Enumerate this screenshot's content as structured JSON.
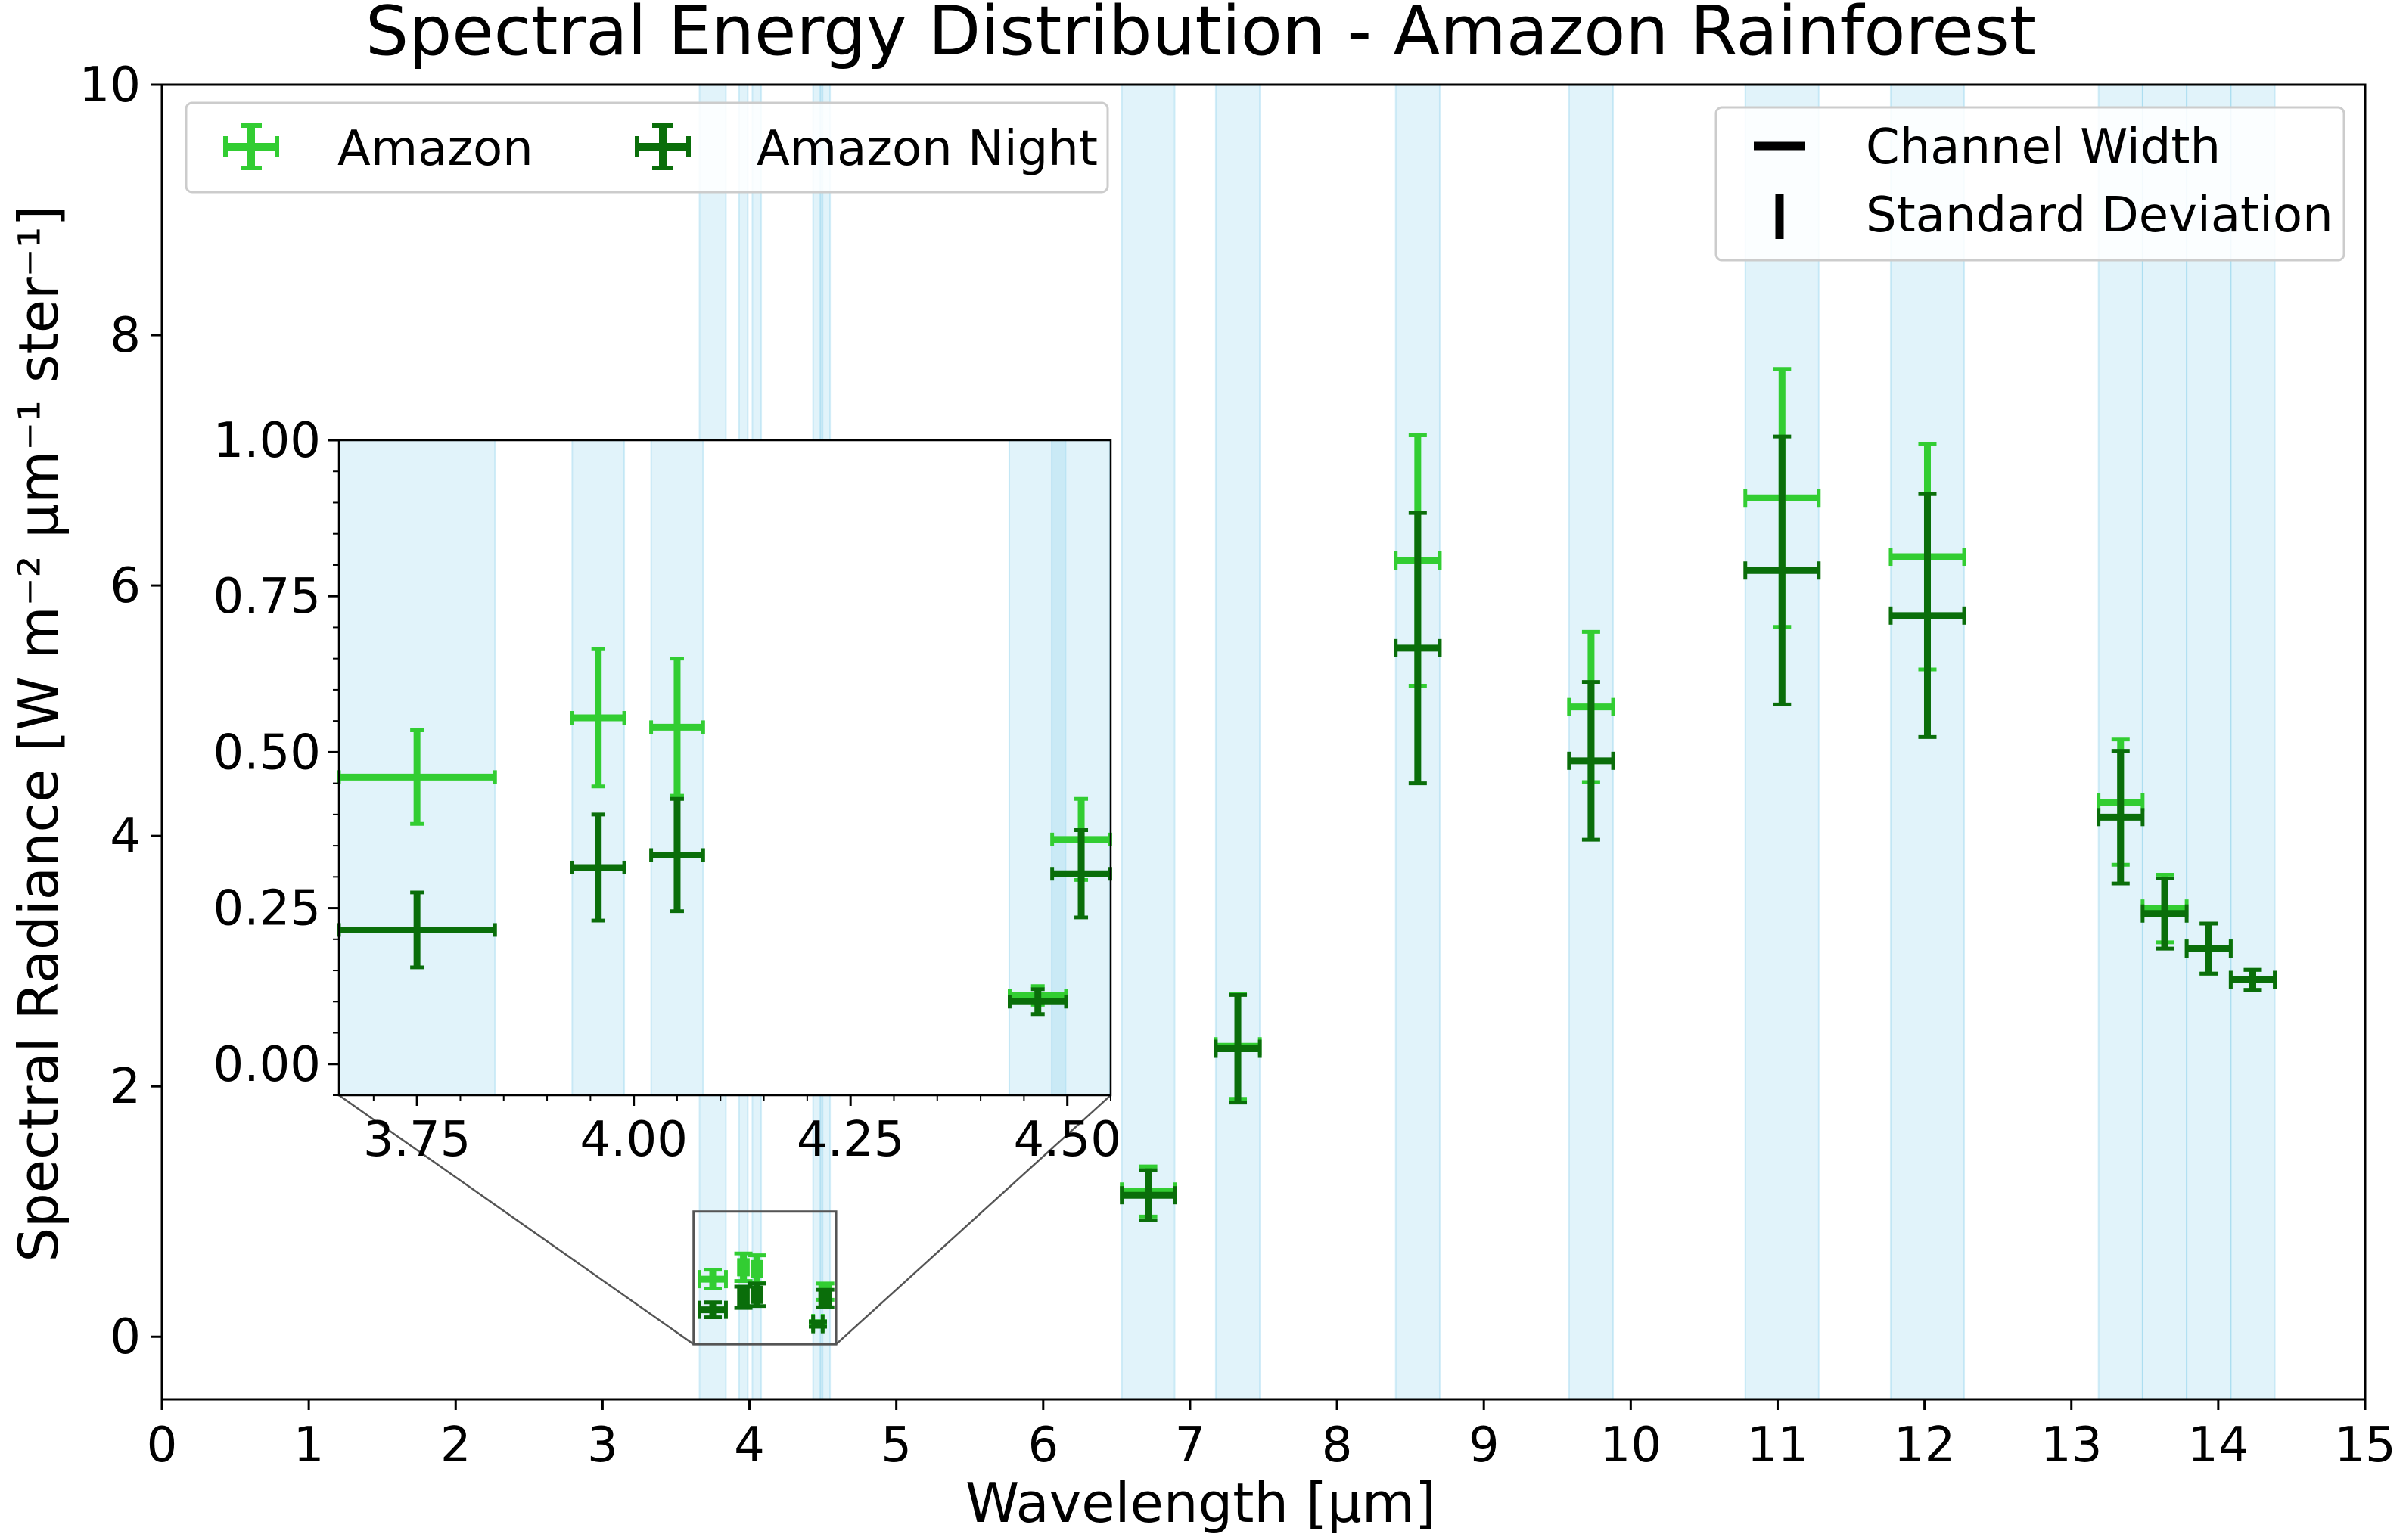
{
  "chart_data": {
    "type": "scatter",
    "title": "Spectral Energy Distribution - Amazon Rainforest",
    "xlabel": "Wavelength [μm]",
    "ylabel": "Spectral Radiance  [W m⁻² μm⁻¹ ster⁻¹]",
    "xlim": [
      0,
      15
    ],
    "ylim": [
      -0.5,
      10
    ],
    "xticks": [
      "0",
      "1",
      "2",
      "3",
      "4",
      "5",
      "6",
      "7",
      "8",
      "9",
      "10",
      "11",
      "12",
      "13",
      "14",
      "15"
    ],
    "yticks": [
      "0",
      "2",
      "4",
      "6",
      "8",
      "10"
    ],
    "bands": [
      [
        3.66,
        3.84
      ],
      [
        3.929,
        3.989
      ],
      [
        4.02,
        4.08
      ],
      [
        4.433,
        4.498
      ],
      [
        4.482,
        4.549
      ],
      [
        6.535,
        6.895
      ],
      [
        7.175,
        7.475
      ],
      [
        8.4,
        8.7
      ],
      [
        9.58,
        9.88
      ],
      [
        10.78,
        11.28
      ],
      [
        11.77,
        12.27
      ],
      [
        13.185,
        13.485
      ],
      [
        13.485,
        13.785
      ],
      [
        13.785,
        14.085
      ],
      [
        14.085,
        14.385
      ]
    ],
    "legend_series_labels": [
      "Amazon",
      "Amazon Night"
    ],
    "legend_key_labels": [
      "Channel Width",
      "Standard Deviation"
    ],
    "series": [
      {
        "name": "Amazon",
        "color": "#32cd32",
        "points": [
          {
            "x": 3.75,
            "xw": 0.09,
            "y": 0.46,
            "yerr": 0.075
          },
          {
            "x": 3.959,
            "xw": 0.03,
            "y": 0.555,
            "yerr": 0.11
          },
          {
            "x": 4.05,
            "xw": 0.03,
            "y": 0.54,
            "yerr": 0.11
          },
          {
            "x": 4.466,
            "xw": 0.0325,
            "y": 0.11,
            "yerr": 0.015
          },
          {
            "x": 4.516,
            "xw": 0.0335,
            "y": 0.36,
            "yerr": 0.065
          },
          {
            "x": 6.715,
            "xw": 0.18,
            "y": 1.16,
            "yerr": 0.2
          },
          {
            "x": 7.325,
            "xw": 0.15,
            "y": 2.32,
            "yerr": 0.42
          },
          {
            "x": 8.55,
            "xw": 0.15,
            "y": 6.2,
            "yerr": 1.0
          },
          {
            "x": 9.73,
            "xw": 0.15,
            "y": 5.03,
            "yerr": 0.6
          },
          {
            "x": 11.03,
            "xw": 0.25,
            "y": 6.7,
            "yerr": 1.03
          },
          {
            "x": 12.02,
            "xw": 0.25,
            "y": 6.23,
            "yerr": 0.9
          },
          {
            "x": 13.335,
            "xw": 0.15,
            "y": 4.27,
            "yerr": 0.5
          },
          {
            "x": 13.635,
            "xw": 0.15,
            "y": 3.42,
            "yerr": 0.27
          },
          {
            "x": 13.935,
            "xw": 0.15,
            "y": 3.1,
            "yerr": 0.2
          },
          {
            "x": 14.235,
            "xw": 0.15,
            "y": 2.85,
            "yerr": 0.08
          }
        ]
      },
      {
        "name": "Amazon Night",
        "color": "#0a6e0a",
        "points": [
          {
            "x": 3.75,
            "xw": 0.09,
            "y": 0.215,
            "yerr": 0.06
          },
          {
            "x": 3.959,
            "xw": 0.03,
            "y": 0.315,
            "yerr": 0.085
          },
          {
            "x": 4.05,
            "xw": 0.03,
            "y": 0.335,
            "yerr": 0.09
          },
          {
            "x": 4.466,
            "xw": 0.0325,
            "y": 0.1,
            "yerr": 0.02
          },
          {
            "x": 4.516,
            "xw": 0.0335,
            "y": 0.305,
            "yerr": 0.07
          },
          {
            "x": 6.715,
            "xw": 0.18,
            "y": 1.13,
            "yerr": 0.2
          },
          {
            "x": 7.325,
            "xw": 0.15,
            "y": 2.3,
            "yerr": 0.43
          },
          {
            "x": 8.55,
            "xw": 0.15,
            "y": 5.5,
            "yerr": 1.08
          },
          {
            "x": 9.73,
            "xw": 0.15,
            "y": 4.6,
            "yerr": 0.63
          },
          {
            "x": 11.03,
            "xw": 0.25,
            "y": 6.12,
            "yerr": 1.07
          },
          {
            "x": 12.02,
            "xw": 0.25,
            "y": 5.76,
            "yerr": 0.97
          },
          {
            "x": 13.335,
            "xw": 0.15,
            "y": 4.15,
            "yerr": 0.53
          },
          {
            "x": 13.635,
            "xw": 0.15,
            "y": 3.38,
            "yerr": 0.28
          },
          {
            "x": 13.935,
            "xw": 0.15,
            "y": 3.1,
            "yerr": 0.2
          },
          {
            "x": 14.235,
            "xw": 0.15,
            "y": 2.85,
            "yerr": 0.08
          }
        ]
      }
    ],
    "inset": {
      "xlim": [
        3.66,
        4.55
      ],
      "ylim": [
        -0.05,
        1.0
      ],
      "xticks": [
        "3.75",
        "4.00",
        "4.25",
        "4.50"
      ],
      "yticks": [
        "0.00",
        "0.25",
        "0.50",
        "0.75",
        "1.00"
      ]
    }
  }
}
